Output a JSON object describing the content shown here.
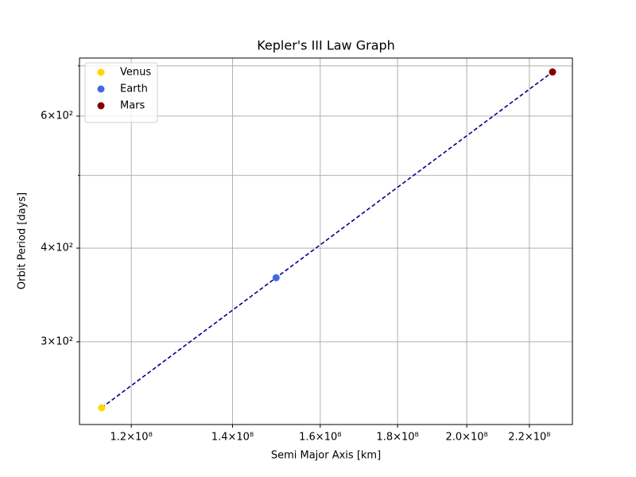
{
  "chart_data": {
    "type": "scatter",
    "title": "Kepler's III Law Graph",
    "x_label": "Semi Major Axis [km]",
    "y_label": "Orbit Period [days]",
    "x_scale": "log",
    "y_scale": "log",
    "grid": true,
    "legend_position": "upper-left",
    "line_color": "#00008b",
    "line_style": "dashed",
    "series": [
      {
        "name": "Venus",
        "color": "#ffd700",
        "x": [
          114700000
        ],
        "values": [
          245
        ]
      },
      {
        "name": "Earth",
        "color": "#4169e1",
        "x": [
          149600000
        ],
        "values": [
          365.25
        ]
      },
      {
        "name": "Mars",
        "color": "#800000",
        "x": [
          227900000
        ],
        "values": [
          687
        ]
      }
    ],
    "xlim": [
      110900000,
      234900000
    ],
    "ylim": [
      232.7,
      717
    ],
    "xticks": [
      {
        "value": 120000000,
        "label": "1.2×10⁸"
      },
      {
        "value": 140000000,
        "label": "1.4×10⁸"
      },
      {
        "value": 160000000,
        "label": "1.6×10⁸"
      },
      {
        "value": 180000000,
        "label": "1.8×10⁸"
      },
      {
        "value": 200000000,
        "label": "2.0×10⁸"
      },
      {
        "value": 220000000,
        "label": "2.2×10⁸"
      }
    ],
    "yticks": [
      {
        "value": 300,
        "label": "3×10²"
      },
      {
        "value": 400,
        "label": "4×10²"
      },
      {
        "value": 600,
        "label": "6×10²"
      }
    ],
    "y_minor_ticks": [
      500,
      700
    ]
  }
}
